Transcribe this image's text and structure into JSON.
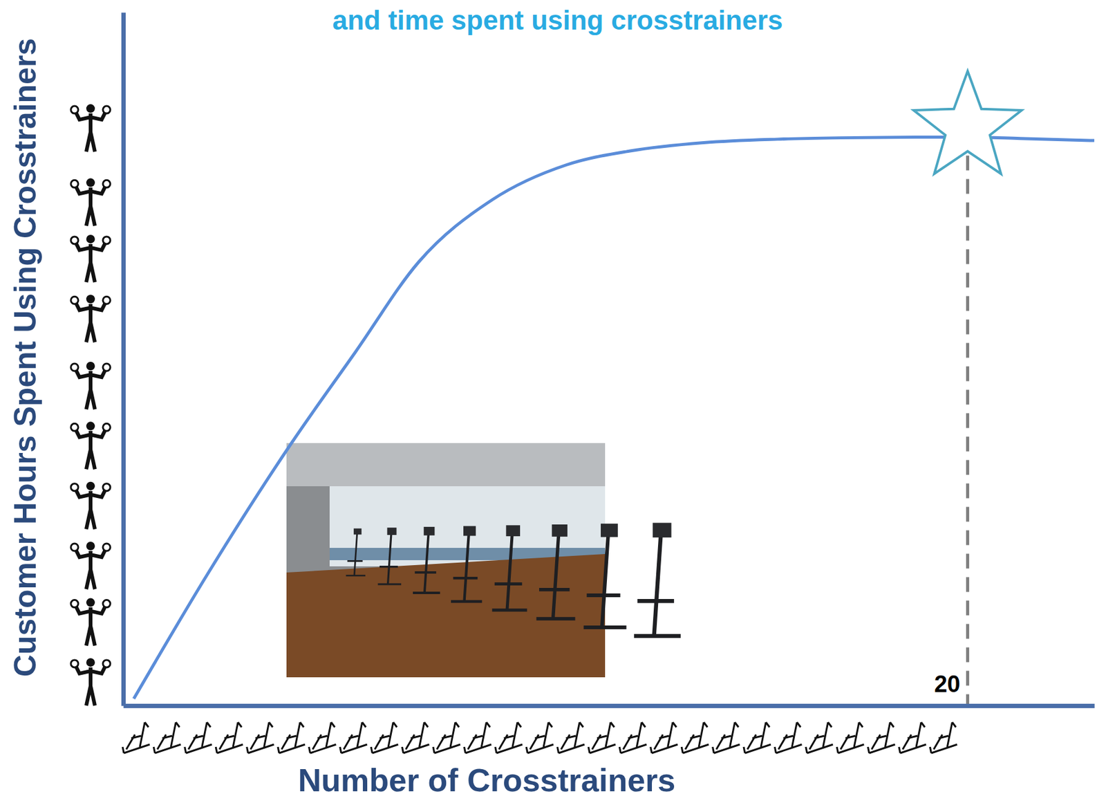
{
  "chart_data": {
    "type": "line",
    "title": "and time spent using crosstrainers",
    "x_label": "Number of Crosstrainers",
    "y_label": "Customer Hours Spent Using Crosstrainers",
    "x": [
      0.25,
      2,
      4,
      5.5,
      7,
      8.75,
      10.5,
      12,
      13.75,
      15.5,
      17,
      18.75,
      20,
      21.25,
      23
    ],
    "values": [
      1,
      19,
      38,
      51,
      64,
      73,
      78,
      80,
      81.2,
      81.7,
      81.9,
      82,
      82,
      81.8,
      81.5
    ],
    "color": "#5b8dd9",
    "xlim": [
      0,
      23
    ],
    "ylim": [
      0,
      100
    ],
    "tick_labels": false,
    "annotations": [
      {
        "label": "20",
        "x": 20,
        "y": 82
      }
    ]
  }
}
